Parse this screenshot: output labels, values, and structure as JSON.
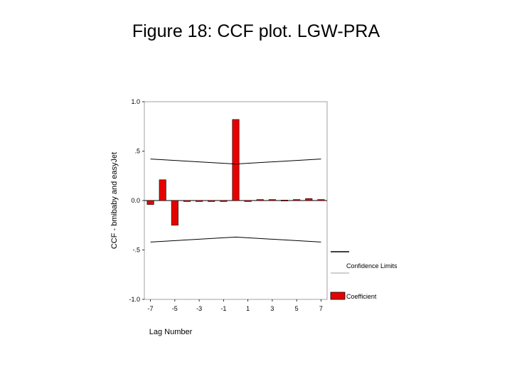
{
  "figure_title": "Figure 18: CCF plot. LGW-PRA",
  "chart_data": {
    "type": "bar",
    "xlabel": "Lag Number",
    "ylabel": "CCF - bmibaby and easyJet",
    "ylim": [
      -1.0,
      1.0
    ],
    "xlim": [
      -7,
      7
    ],
    "y_ticks": [
      {
        "value": 1.0,
        "label": "1.0"
      },
      {
        "value": 0.5,
        "label": ".5"
      },
      {
        "value": 0.0,
        "label": "0.0"
      },
      {
        "value": -0.5,
        "label": "-.5"
      },
      {
        "value": -1.0,
        "label": "-1.0"
      }
    ],
    "x_ticks": [
      {
        "value": -7,
        "label": "-7"
      },
      {
        "value": -5,
        "label": "-5"
      },
      {
        "value": -3,
        "label": "-3"
      },
      {
        "value": -1,
        "label": "-1"
      },
      {
        "value": 1,
        "label": "1"
      },
      {
        "value": 3,
        "label": "3"
      },
      {
        "value": 5,
        "label": "5"
      },
      {
        "value": 7,
        "label": "7"
      }
    ],
    "coefficients": [
      {
        "lag": -7,
        "value": -0.04
      },
      {
        "lag": -6,
        "value": 0.21
      },
      {
        "lag": -5,
        "value": -0.25
      },
      {
        "lag": -4,
        "value": -0.01
      },
      {
        "lag": -3,
        "value": -0.01
      },
      {
        "lag": -2,
        "value": -0.01
      },
      {
        "lag": -1,
        "value": -0.01
      },
      {
        "lag": 0,
        "value": 0.82
      },
      {
        "lag": 1,
        "value": -0.01
      },
      {
        "lag": 2,
        "value": 0.01
      },
      {
        "lag": 3,
        "value": 0.01
      },
      {
        "lag": 4,
        "value": 0.0
      },
      {
        "lag": 5,
        "value": 0.01
      },
      {
        "lag": 6,
        "value": 0.02
      },
      {
        "lag": 7,
        "value": 0.01
      }
    ],
    "confidence_upper": [
      {
        "lag": -7,
        "value": 0.42
      },
      {
        "lag": 0,
        "value": 0.37
      },
      {
        "lag": 7,
        "value": 0.42
      }
    ],
    "confidence_lower": [
      {
        "lag": -7,
        "value": -0.42
      },
      {
        "lag": 0,
        "value": -0.37
      },
      {
        "lag": 7,
        "value": -0.42
      }
    ],
    "legend": {
      "position": "right",
      "items": [
        {
          "label": "Confidence Limits",
          "kind": "lines"
        },
        {
          "label": "Coefficient",
          "kind": "bar"
        }
      ]
    },
    "colors": {
      "bar_fill": "#e60000",
      "bar_stroke": "#000000",
      "line": "#000000",
      "frame": "#a0a0a0"
    }
  }
}
